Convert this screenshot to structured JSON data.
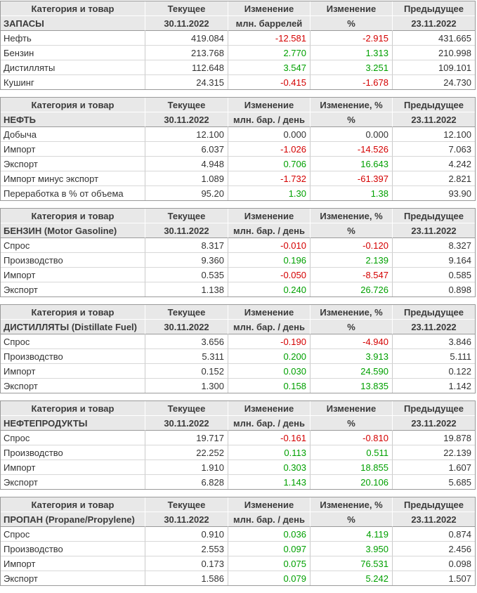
{
  "shared": {
    "col_category": "Категория и товар",
    "col_current": "Текущее",
    "col_change": "Изменение",
    "col_previous": "Предыдущее",
    "current_date": "30.11.2022",
    "previous_date": "23.11.2022",
    "percent": "%"
  },
  "colors": {
    "positive": "#00a000",
    "negative": "#d40000",
    "header_bg": "#e8e8e8",
    "outer_border": "#9a9a9a",
    "inner_border": "#cbcbcb"
  },
  "tables": [
    {
      "name": "stocks",
      "section": "ЗАПАСЫ",
      "change_pct_header": "Изменение",
      "unit": "млн. баррелей",
      "rows": [
        {
          "label": "Нефть",
          "current": "419.084",
          "change": "-12.581",
          "change_pct": "-2.915",
          "previous": "431.665"
        },
        {
          "label": "Бензин",
          "current": "213.768",
          "change": "2.770",
          "change_pct": "1.313",
          "previous": "210.998"
        },
        {
          "label": "Дистилляты",
          "current": "112.648",
          "change": "3.547",
          "change_pct": "3.251",
          "previous": "109.101"
        },
        {
          "label": "Кушинг",
          "current": "24.315",
          "change": "-0.415",
          "change_pct": "-1.678",
          "previous": "24.730"
        }
      ]
    },
    {
      "name": "crude-oil",
      "section": "НЕФТЬ",
      "change_pct_header": "Изменение, %",
      "unit": "млн. бар. / день",
      "rows": [
        {
          "label": "Добыча",
          "current": "12.100",
          "change": "0.000",
          "change_pct": "0.000",
          "previous": "12.100"
        },
        {
          "label": "Импорт",
          "current": "6.037",
          "change": "-1.026",
          "change_pct": "-14.526",
          "previous": "7.063"
        },
        {
          "label": "Экспорт",
          "current": "4.948",
          "change": "0.706",
          "change_pct": "16.643",
          "previous": "4.242"
        },
        {
          "label": "Импорт минус экспорт",
          "current": "1.089",
          "change": "-1.732",
          "change_pct": "-61.397",
          "previous": "2.821"
        },
        {
          "label": "Переработка в % от объема",
          "current": "95.20",
          "change": "1.30",
          "change_pct": "1.38",
          "previous": "93.90"
        }
      ]
    },
    {
      "name": "gasoline",
      "section": "БЕНЗИН (Motor Gasoline)",
      "change_pct_header": "Изменение, %",
      "unit": "млн. бар. / день",
      "rows": [
        {
          "label": "Спрос",
          "current": "8.317",
          "change": "-0.010",
          "change_pct": "-0.120",
          "previous": "8.327"
        },
        {
          "label": "Производство",
          "current": "9.360",
          "change": "0.196",
          "change_pct": "2.139",
          "previous": "9.164"
        },
        {
          "label": "Импорт",
          "current": "0.535",
          "change": "-0.050",
          "change_pct": "-8.547",
          "previous": "0.585"
        },
        {
          "label": "Экспорт",
          "current": "1.138",
          "change": "0.240",
          "change_pct": "26.726",
          "previous": "0.898"
        }
      ]
    },
    {
      "name": "distillates",
      "section": "ДИСТИЛЛЯТЫ (Distillate Fuel)",
      "change_pct_header": "Изменение, %",
      "unit": "млн. бар. / день",
      "rows": [
        {
          "label": "Спрос",
          "current": "3.656",
          "change": "-0.190",
          "change_pct": "-4.940",
          "previous": "3.846"
        },
        {
          "label": "Производство",
          "current": "5.311",
          "change": "0.200",
          "change_pct": "3.913",
          "previous": "5.111"
        },
        {
          "label": "Импорт",
          "current": "0.152",
          "change": "0.030",
          "change_pct": "24.590",
          "previous": "0.122"
        },
        {
          "label": "Экспорт",
          "current": "1.300",
          "change": "0.158",
          "change_pct": "13.835",
          "previous": "1.142"
        }
      ]
    },
    {
      "name": "petroleum-products",
      "section": "НЕФТЕПРОДУКТЫ",
      "change_pct_header": "Изменение",
      "unit": "млн. бар. / день",
      "rows": [
        {
          "label": "Спрос",
          "current": "19.717",
          "change": "-0.161",
          "change_pct": "-0.810",
          "previous": "19.878"
        },
        {
          "label": "Производство",
          "current": "22.252",
          "change": "0.113",
          "change_pct": "0.511",
          "previous": "22.139"
        },
        {
          "label": "Импорт",
          "current": "1.910",
          "change": "0.303",
          "change_pct": "18.855",
          "previous": "1.607"
        },
        {
          "label": "Экспорт",
          "current": "6.828",
          "change": "1.143",
          "change_pct": "20.106",
          "previous": "5.685"
        }
      ]
    },
    {
      "name": "propane",
      "section": "ПРОПАН (Propane/Propylene)",
      "change_pct_header": "Изменение, %",
      "unit": "млн. бар. / день",
      "rows": [
        {
          "label": "Спрос",
          "current": "0.910",
          "change": "0.036",
          "change_pct": "4.119",
          "previous": "0.874"
        },
        {
          "label": "Производство",
          "current": "2.553",
          "change": "0.097",
          "change_pct": "3.950",
          "previous": "2.456"
        },
        {
          "label": "Импорт",
          "current": "0.173",
          "change": "0.075",
          "change_pct": "76.531",
          "previous": "0.098"
        },
        {
          "label": "Экспорт",
          "current": "1.586",
          "change": "0.079",
          "change_pct": "5.242",
          "previous": "1.507"
        }
      ]
    }
  ]
}
